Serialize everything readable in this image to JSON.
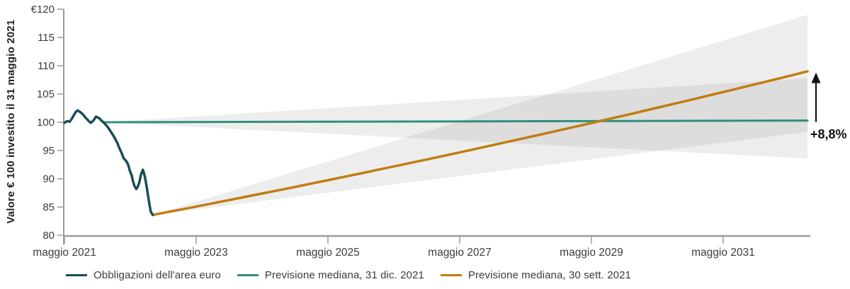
{
  "chart_data": {
    "type": "line",
    "title": "",
    "ylabel": "Valore € 100 investito il 31 maggio 2021",
    "y_axis": {
      "min": 80,
      "max": 120,
      "tick_step": 5,
      "tick_labels_top_to_bottom": [
        "€120",
        "115",
        "110",
        "105",
        "100",
        "95",
        "90",
        "85",
        "80"
      ]
    },
    "x_axis": {
      "unit": "anni da maggio 2021",
      "min": 0,
      "max": 11.28,
      "ticks": [
        {
          "x": 0,
          "label": "maggio 2021"
        },
        {
          "x": 2,
          "label": "maggio 2023"
        },
        {
          "x": 4,
          "label": "maggio 2025"
        },
        {
          "x": 6,
          "label": "maggio 2027"
        },
        {
          "x": 8,
          "label": "maggio 2029"
        },
        {
          "x": 10,
          "label": "maggio 2031"
        }
      ]
    },
    "grid": false,
    "legend_position": "bottom",
    "series": [
      {
        "name": "Obbligazioni dell'area euro",
        "color": "#194d53",
        "width": 3.5,
        "interpolation": "linear",
        "points": [
          [
            0.0,
            99.9
          ],
          [
            0.04,
            100.2
          ],
          [
            0.08,
            100.1
          ],
          [
            0.11,
            100.6
          ],
          [
            0.14,
            101.2
          ],
          [
            0.17,
            101.8
          ],
          [
            0.2,
            102.1
          ],
          [
            0.24,
            101.8
          ],
          [
            0.28,
            101.4
          ],
          [
            0.32,
            100.8
          ],
          [
            0.37,
            100.2
          ],
          [
            0.4,
            99.9
          ],
          [
            0.44,
            100.3
          ],
          [
            0.48,
            101.0
          ],
          [
            0.53,
            100.7
          ],
          [
            0.57,
            100.2
          ],
          [
            0.61,
            99.8
          ],
          [
            0.66,
            99.1
          ],
          [
            0.7,
            98.4
          ],
          [
            0.75,
            97.5
          ],
          [
            0.8,
            96.4
          ],
          [
            0.83,
            95.5
          ],
          [
            0.87,
            94.5
          ],
          [
            0.9,
            93.6
          ],
          [
            0.94,
            93.1
          ],
          [
            0.97,
            92.4
          ],
          [
            0.99,
            91.5
          ],
          [
            1.02,
            90.6
          ],
          [
            1.04,
            89.6
          ],
          [
            1.06,
            88.8
          ],
          [
            1.09,
            88.2
          ],
          [
            1.11,
            88.5
          ],
          [
            1.14,
            89.5
          ],
          [
            1.16,
            90.7
          ],
          [
            1.19,
            91.6
          ],
          [
            1.22,
            90.4
          ],
          [
            1.25,
            88.5
          ],
          [
            1.28,
            86.2
          ],
          [
            1.31,
            84.2
          ],
          [
            1.34,
            83.6
          ]
        ]
      },
      {
        "name": "Previsione mediana, 31 dic. 2021",
        "color": "#2e8f7c",
        "width": 3,
        "interpolation": "linear",
        "points": [
          [
            0.61,
            100.0
          ],
          [
            11.28,
            100.3
          ]
        ]
      },
      {
        "name": "Previsione mediana, 30 sett. 2021",
        "color": "#c17d10",
        "width": 3.5,
        "interpolation": "exponential",
        "points": [
          [
            1.34,
            83.6
          ],
          [
            11.28,
            109.0
          ]
        ]
      }
    ],
    "uncertainty_fans": [
      {
        "name": "fan-previsione-31-dic-2021",
        "start": [
          0.61,
          100.0
        ],
        "end_x": 11.28,
        "end_top": 107.8,
        "end_bottom": 93.6,
        "color": "rgba(120,120,120,0.135)"
      },
      {
        "name": "fan-previsione-30-sett-2021",
        "start": [
          1.34,
          83.6
        ],
        "end_x": 11.28,
        "end_top": 119.0,
        "end_bottom": 98.3,
        "color": "rgba(120,120,120,0.135)"
      }
    ],
    "annotation": {
      "label": "+8,8%",
      "arrow_from_value": 100.3,
      "arrow_to_value": 108.8
    },
    "legend": [
      {
        "label": "Obbligazioni dell'area euro",
        "color": "#194d53"
      },
      {
        "label": "Previsione mediana, 31 dic. 2021",
        "color": "#2e8f7c"
      },
      {
        "label": "Previsione mediana, 30 sett. 2021",
        "color": "#c17d10"
      }
    ],
    "colors": {
      "axis": "#9b9b9b",
      "tick_text": "#3c3c3c",
      "annotation": "#111111"
    }
  }
}
